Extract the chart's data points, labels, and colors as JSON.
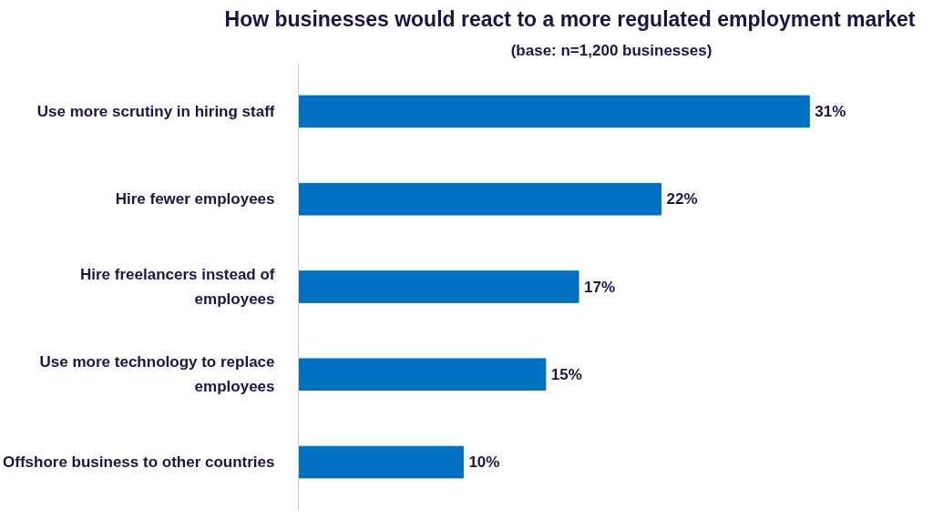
{
  "chart_data": {
    "type": "bar",
    "orientation": "horizontal",
    "title": "How businesses would react to a more regulated employment market",
    "subtitle": "(base: n=1,200 businesses)",
    "categories": [
      "Use more scrutiny in hiring staff",
      "Hire fewer employees",
      "Hire freelancers instead of\nemployees",
      "Use more technology to replace\nemployees",
      "Offshore business to other countries"
    ],
    "values": [
      31,
      22,
      17,
      15,
      10
    ],
    "color": "#0070c0",
    "value_labels": [
      "31%",
      "22%",
      "17%",
      "15%",
      "10%"
    ],
    "tick_labels": "y",
    "grid": false
  }
}
